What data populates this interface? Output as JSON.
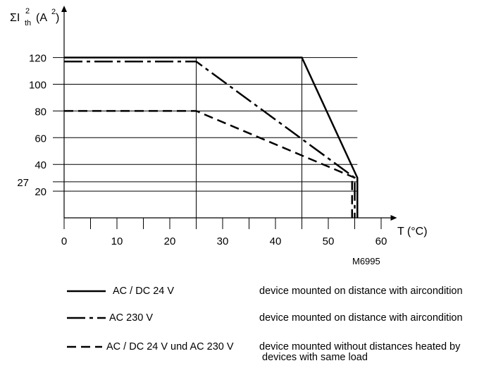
{
  "chart_data": {
    "type": "line",
    "y_axis_title": {
      "main": "ΣI",
      "sup": "2",
      "sub": "th",
      "unit_pre": "(A",
      "unit_sup": "2",
      "unit_post": ")"
    },
    "x_axis_title": "T (°C)",
    "xlim": [
      0,
      63
    ],
    "ylim": [
      0,
      130
    ],
    "x_ticks": [
      0,
      10,
      20,
      30,
      40,
      50,
      60
    ],
    "x_minor_ticks": [
      5,
      15,
      25,
      35,
      45,
      55
    ],
    "y_ticks": [
      20,
      40,
      60,
      80,
      100,
      120
    ],
    "y_extra_tick": 27,
    "vertical_gridlines": [
      25,
      45
    ],
    "series": [
      {
        "style": "solid",
        "x": [
          0,
          45,
          55.5,
          55.5
        ],
        "y": [
          120,
          120,
          30,
          0
        ]
      },
      {
        "style": "long-short-dash",
        "x": [
          0,
          25,
          55,
          55
        ],
        "y": [
          117,
          117,
          30,
          0
        ]
      },
      {
        "style": "dashed",
        "x": [
          0,
          25,
          55,
          54.5,
          54.5
        ],
        "y": [
          80,
          80,
          30,
          30,
          0
        ]
      }
    ],
    "figure_code": "M6995",
    "legend": [
      {
        "style": "solid",
        "label": "AC / DC 24 V",
        "description": [
          "device mounted on distance with aircondition"
        ]
      },
      {
        "style": "long-short-dash",
        "label": "AC 230 V",
        "description": [
          "device mounted on distance with aircondition"
        ]
      },
      {
        "style": "dashed",
        "label": "AC / DC 24 V und AC 230 V",
        "description": [
          "device mounted without distances heated by",
          "devices with same load"
        ]
      }
    ]
  }
}
